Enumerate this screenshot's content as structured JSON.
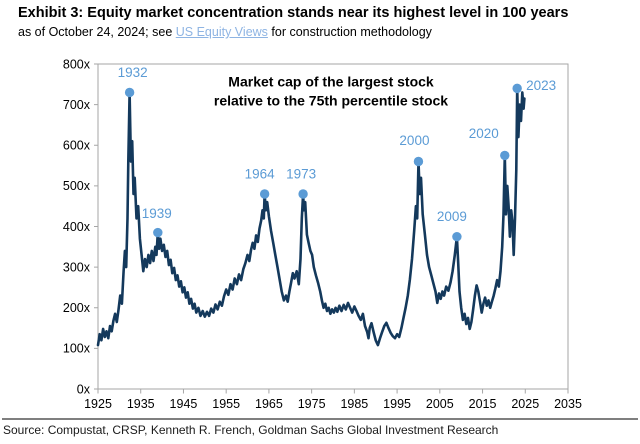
{
  "header": {
    "title": "Exhibit 3: Equity market concentration stands near its highest level in 100 years",
    "subtitle_prefix": "as of October 24, 2024; see ",
    "subtitle_link": "US Equity Views",
    "subtitle_suffix": " for construction methodology"
  },
  "footer": {
    "source": "Source: Compustat, CRSP, Kenneth R. French, Goldman Sachs Global Investment Research"
  },
  "chart_data": {
    "type": "line",
    "annotation": [
      "Market cap of the largest stock",
      "relative to the 75th percentile stock"
    ],
    "xlim": [
      1925,
      2035
    ],
    "ylim": [
      0,
      800
    ],
    "x_ticks": [
      1925,
      1935,
      1945,
      1955,
      1965,
      1975,
      1985,
      1995,
      2005,
      2015,
      2025,
      2035
    ],
    "y_ticks": [
      0,
      100,
      200,
      300,
      400,
      500,
      600,
      700,
      800
    ],
    "y_tick_suffix": "x",
    "grid": false,
    "legend": false,
    "colors": {
      "line": "#14395C",
      "marker": "#5B9BD5",
      "peak_label": "#5B9BD5",
      "axis": "#A6A6A6",
      "tick_label": "#000000",
      "annotation": "#000000",
      "link": "#8EB4E3"
    },
    "peaks": [
      {
        "label": "1932",
        "year": 1932.4,
        "value": 730,
        "label_dx": 3,
        "label_dy": -20
      },
      {
        "label": "1939",
        "year": 1939.0,
        "value": 385,
        "label_dx": -1,
        "label_dy": -19
      },
      {
        "label": "1964",
        "year": 1964.0,
        "value": 480,
        "label_dx": -5,
        "label_dy": -20
      },
      {
        "label": "1973",
        "year": 1973.0,
        "value": 480,
        "label_dx": -2,
        "label_dy": -20
      },
      {
        "label": "2000",
        "year": 2000.0,
        "value": 560,
        "label_dx": -4,
        "label_dy": -21
      },
      {
        "label": "2009",
        "year": 2009.0,
        "value": 375,
        "label_dx": -5,
        "label_dy": -20
      },
      {
        "label": "2020",
        "year": 2020.2,
        "value": 575,
        "label_dx": -21,
        "label_dy": -22
      },
      {
        "label": "2023",
        "year": 2023.1,
        "value": 740,
        "label_dx": 24,
        "label_dy": -3
      }
    ],
    "series": [
      {
        "name": "Market cap of largest stock relative to 75th percentile stock",
        "points": [
          [
            1925,
            108
          ],
          [
            1925.4,
            135
          ],
          [
            1925.8,
            120
          ],
          [
            1926.2,
            148
          ],
          [
            1926.6,
            128
          ],
          [
            1927,
            142
          ],
          [
            1927.4,
            125
          ],
          [
            1927.8,
            155
          ],
          [
            1928.2,
            142
          ],
          [
            1928.6,
            168
          ],
          [
            1929,
            185
          ],
          [
            1929.4,
            165
          ],
          [
            1929.8,
            195
          ],
          [
            1930.2,
            230
          ],
          [
            1930.6,
            210
          ],
          [
            1931,
            290
          ],
          [
            1931.3,
            340
          ],
          [
            1931.6,
            300
          ],
          [
            1931.9,
            420
          ],
          [
            1932.1,
            560
          ],
          [
            1932.4,
            730
          ],
          [
            1932.7,
            560
          ],
          [
            1933,
            610
          ],
          [
            1933.3,
            480
          ],
          [
            1933.6,
            520
          ],
          [
            1934,
            420
          ],
          [
            1934.4,
            450
          ],
          [
            1934.8,
            370
          ],
          [
            1935.2,
            330
          ],
          [
            1935.6,
            290
          ],
          [
            1936,
            320
          ],
          [
            1936.4,
            300
          ],
          [
            1936.8,
            330
          ],
          [
            1937.2,
            310
          ],
          [
            1937.6,
            340
          ],
          [
            1938,
            315
          ],
          [
            1938.4,
            350
          ],
          [
            1938.7,
            330
          ],
          [
            1939,
            385
          ],
          [
            1939.3,
            345
          ],
          [
            1939.6,
            370
          ],
          [
            1940,
            340
          ],
          [
            1940.4,
            355
          ],
          [
            1940.8,
            325
          ],
          [
            1941.2,
            340
          ],
          [
            1941.6,
            305
          ],
          [
            1942,
            318
          ],
          [
            1942.4,
            285
          ],
          [
            1942.8,
            298
          ],
          [
            1943.2,
            268
          ],
          [
            1943.6,
            280
          ],
          [
            1944,
            252
          ],
          [
            1944.4,
            265
          ],
          [
            1944.8,
            238
          ],
          [
            1945.2,
            250
          ],
          [
            1945.6,
            225
          ],
          [
            1946,
            238
          ],
          [
            1946.4,
            210
          ],
          [
            1946.8,
            222
          ],
          [
            1947.2,
            198
          ],
          [
            1947.6,
            210
          ],
          [
            1948,
            188
          ],
          [
            1948.5,
            200
          ],
          [
            1949,
            180
          ],
          [
            1949.5,
            192
          ],
          [
            1950,
            178
          ],
          [
            1950.5,
            190
          ],
          [
            1951,
            180
          ],
          [
            1951.5,
            198
          ],
          [
            1952,
            188
          ],
          [
            1952.5,
            208
          ],
          [
            1953,
            196
          ],
          [
            1953.5,
            215
          ],
          [
            1954,
            205
          ],
          [
            1954.5,
            228
          ],
          [
            1955,
            245
          ],
          [
            1955.5,
            232
          ],
          [
            1956,
            258
          ],
          [
            1956.5,
            245
          ],
          [
            1957,
            272
          ],
          [
            1957.5,
            258
          ],
          [
            1958,
            282
          ],
          [
            1958.5,
            268
          ],
          [
            1959,
            295
          ],
          [
            1959.5,
            310
          ],
          [
            1960,
            330
          ],
          [
            1960.4,
            315
          ],
          [
            1960.8,
            342
          ],
          [
            1961.2,
            360
          ],
          [
            1961.6,
            345
          ],
          [
            1962,
            378
          ],
          [
            1962.4,
            362
          ],
          [
            1962.8,
            395
          ],
          [
            1963.2,
            415
          ],
          [
            1963.5,
            440
          ],
          [
            1963.8,
            420
          ],
          [
            1964,
            480
          ],
          [
            1964.3,
            440
          ],
          [
            1964.6,
            460
          ],
          [
            1965,
            425
          ],
          [
            1965.5,
            390
          ],
          [
            1966,
            360
          ],
          [
            1966.5,
            330
          ],
          [
            1967,
            300
          ],
          [
            1967.5,
            270
          ],
          [
            1968,
            240
          ],
          [
            1968.5,
            218
          ],
          [
            1969,
            230
          ],
          [
            1969.4,
            215
          ],
          [
            1969.8,
            240
          ],
          [
            1970.2,
            262
          ],
          [
            1970.6,
            285
          ],
          [
            1971,
            272
          ],
          [
            1971.5,
            290
          ],
          [
            1972,
            258
          ],
          [
            1972.4,
            320
          ],
          [
            1972.7,
            420
          ],
          [
            1973,
            480
          ],
          [
            1973.2,
            440
          ],
          [
            1973.5,
            460
          ],
          [
            1973.9,
            380
          ],
          [
            1974.3,
            360
          ],
          [
            1974.7,
            340
          ],
          [
            1975.1,
            330
          ],
          [
            1975.5,
            300
          ],
          [
            1976,
            280
          ],
          [
            1976.5,
            262
          ],
          [
            1977,
            240
          ],
          [
            1977.4,
            218
          ],
          [
            1977.8,
            200
          ],
          [
            1978.2,
            210
          ],
          [
            1978.6,
            192
          ],
          [
            1979,
            200
          ],
          [
            1979.4,
            185
          ],
          [
            1979.8,
            196
          ],
          [
            1980.2,
            188
          ],
          [
            1980.6,
            200
          ],
          [
            1981,
            190
          ],
          [
            1981.5,
            205
          ],
          [
            1982,
            192
          ],
          [
            1982.5,
            207
          ],
          [
            1983,
            196
          ],
          [
            1983.5,
            212
          ],
          [
            1984,
            200
          ],
          [
            1984.5,
            188
          ],
          [
            1985,
            203
          ],
          [
            1985.5,
            192
          ],
          [
            1986,
            180
          ],
          [
            1986.5,
            170
          ],
          [
            1987,
            185
          ],
          [
            1987.5,
            155
          ],
          [
            1988,
            140
          ],
          [
            1988.3,
            125
          ],
          [
            1988.6,
            150
          ],
          [
            1989,
            162
          ],
          [
            1989.5,
            140
          ],
          [
            1990,
            120
          ],
          [
            1990.5,
            108
          ],
          [
            1991,
            125
          ],
          [
            1991.5,
            140
          ],
          [
            1992,
            155
          ],
          [
            1992.5,
            163
          ],
          [
            1993,
            150
          ],
          [
            1993.5,
            138
          ],
          [
            1994,
            130
          ],
          [
            1994.5,
            125
          ],
          [
            1995,
            135
          ],
          [
            1995.5,
            128
          ],
          [
            1996,
            150
          ],
          [
            1996.5,
            175
          ],
          [
            1997,
            200
          ],
          [
            1997.5,
            230
          ],
          [
            1998,
            270
          ],
          [
            1998.5,
            320
          ],
          [
            1999,
            390
          ],
          [
            1999.4,
            450
          ],
          [
            1999.7,
            420
          ],
          [
            2000,
            560
          ],
          [
            2000.3,
            480
          ],
          [
            2000.6,
            520
          ],
          [
            2001,
            430
          ],
          [
            2001.5,
            380
          ],
          [
            2002,
            330
          ],
          [
            2002.5,
            300
          ],
          [
            2003,
            280
          ],
          [
            2003.5,
            260
          ],
          [
            2004,
            240
          ],
          [
            2004.4,
            212
          ],
          [
            2004.8,
            235
          ],
          [
            2005.2,
            222
          ],
          [
            2005.6,
            240
          ],
          [
            2006,
            230
          ],
          [
            2006.5,
            252
          ],
          [
            2007,
            242
          ],
          [
            2007.5,
            262
          ],
          [
            2008,
            290
          ],
          [
            2008.5,
            330
          ],
          [
            2009,
            375
          ],
          [
            2009.3,
            310
          ],
          [
            2009.6,
            240
          ],
          [
            2010,
            200
          ],
          [
            2010.4,
            170
          ],
          [
            2010.8,
            185
          ],
          [
            2011.2,
            160
          ],
          [
            2011.6,
            175
          ],
          [
            2012,
            148
          ],
          [
            2012.4,
            165
          ],
          [
            2012.8,
            195
          ],
          [
            2013.2,
            230
          ],
          [
            2013.6,
            255
          ],
          [
            2014,
            240
          ],
          [
            2014.4,
            215
          ],
          [
            2014.8,
            188
          ],
          [
            2015.2,
            210
          ],
          [
            2015.6,
            225
          ],
          [
            2016,
            205
          ],
          [
            2016.4,
            218
          ],
          [
            2016.8,
            200
          ],
          [
            2017.2,
            215
          ],
          [
            2017.6,
            230
          ],
          [
            2018,
            248
          ],
          [
            2018.4,
            268
          ],
          [
            2018.8,
            252
          ],
          [
            2019.2,
            290
          ],
          [
            2019.6,
            350
          ],
          [
            2019.9,
            430
          ],
          [
            2020.2,
            575
          ],
          [
            2020.5,
            430
          ],
          [
            2020.8,
            500
          ],
          [
            2021.1,
            450
          ],
          [
            2021.4,
            375
          ],
          [
            2021.7,
            440
          ],
          [
            2022,
            410
          ],
          [
            2022.3,
            330
          ],
          [
            2022.6,
            420
          ],
          [
            2022.9,
            540
          ],
          [
            2023.1,
            740
          ],
          [
            2023.4,
            620
          ],
          [
            2023.7,
            700
          ],
          [
            2024,
            660
          ],
          [
            2024.3,
            730
          ],
          [
            2024.6,
            690
          ],
          [
            2024.8,
            715
          ]
        ]
      }
    ]
  }
}
